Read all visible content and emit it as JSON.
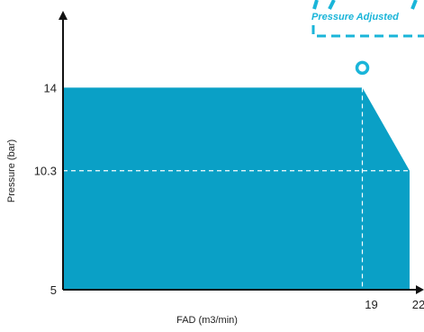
{
  "colors": {
    "fill": "#0aa0c6",
    "accent": "#1ab5d9",
    "axis": "#111111",
    "dash": "#ffffff"
  },
  "badge": {
    "label": "Pressure Adjusted"
  },
  "chart_data": {
    "type": "area",
    "title": "",
    "xlabel": "FAD (m3/min)",
    "ylabel": "Pressure (bar)",
    "xlim": [
      0,
      24
    ],
    "ylim": [
      5,
      16.5
    ],
    "x_ticks": [
      19,
      22
    ],
    "y_ticks": [
      14,
      10.3,
      5
    ],
    "x_tick_labels": [
      "19",
      "22"
    ],
    "y_tick_labels": [
      "14",
      "10.3",
      "5"
    ],
    "series": [
      {
        "x": [
          0,
          19,
          22,
          22,
          0
        ],
        "y": [
          14,
          14,
          10.3,
          5,
          5
        ]
      }
    ],
    "reference_lines": [
      {
        "axis": "x",
        "value": 19
      },
      {
        "axis": "y",
        "value": 10.3
      }
    ],
    "marker": {
      "x": 19,
      "y": 14
    },
    "grid": false
  }
}
